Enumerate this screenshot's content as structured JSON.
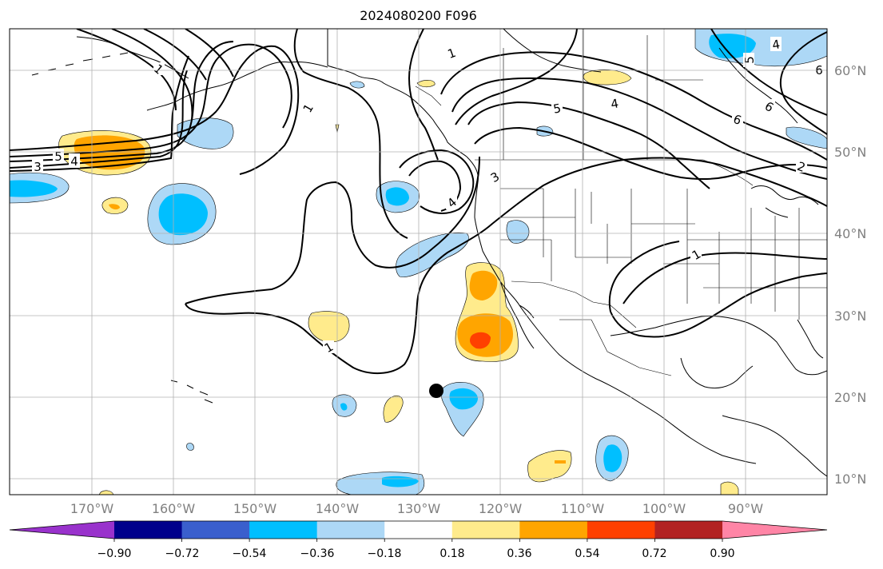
{
  "title": "2024080200 F096",
  "latitude_labels": [
    "60°N",
    "50°N",
    "40°N",
    "30°N",
    "20°N",
    "10°N"
  ],
  "longitude_labels": [
    "170°W",
    "160°W",
    "150°W",
    "140°W",
    "130°W",
    "120°W",
    "110°W",
    "100°W",
    "90°W"
  ],
  "contour_labels": [
    "1",
    "1",
    "1",
    "1",
    "1",
    "2",
    "3",
    "3",
    "4",
    "4",
    "4",
    "4",
    "5",
    "5",
    "5",
    "6",
    "6",
    "6"
  ],
  "colorbar": {
    "tick_labels": [
      "−0.90",
      "−0.72",
      "−0.54",
      "−0.36",
      "−0.18",
      "0.18",
      "0.36",
      "0.54",
      "0.72",
      "0.90"
    ],
    "colors": [
      "#9932cc",
      "#00008b",
      "#3a5fcd",
      "#00bfff",
      "#add8f6",
      "#ffffff",
      "#ffeb8c",
      "#ffa500",
      "#ff4000",
      "#b22222",
      "#ff85a6"
    ]
  },
  "colors": {
    "frame": "#000000",
    "grid": "#b0b0b0",
    "contour": "#000000",
    "coast": "#000000",
    "label": "#808080"
  }
}
